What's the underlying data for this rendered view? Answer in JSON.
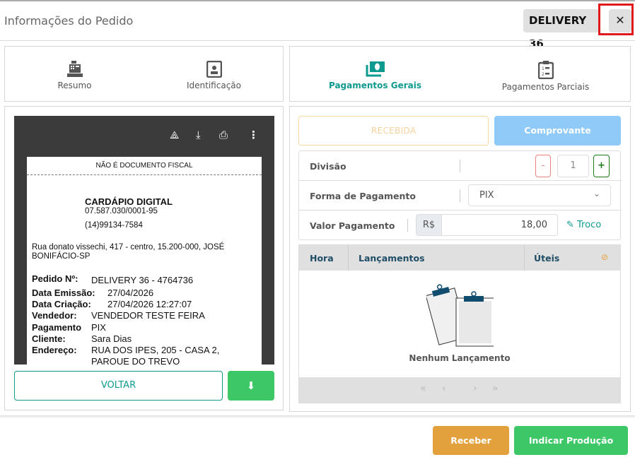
{
  "header": {
    "title": "Informações do Pedido",
    "badge": "DELIVERY 36",
    "close_icon": "close-icon"
  },
  "left_tabs": [
    {
      "label": "Resumo",
      "icon": "cash-register-icon"
    },
    {
      "label": "Identificação",
      "icon": "id-badge-icon"
    }
  ],
  "right_tabs": [
    {
      "label": "Pagamentos Gerais",
      "icon": "money-bill-icon",
      "active": true
    },
    {
      "label": "Pagamentos Parciais",
      "icon": "clipboard-list-icon"
    }
  ],
  "pdf_viewer": {
    "toolbar_icons": [
      "drive-add-icon",
      "download-icon",
      "print-icon",
      "more-vert-icon"
    ],
    "receipt": {
      "notice": "NÃO É DOCUMENTO FISCAL",
      "company": "CARDÁPIO DIGITAL",
      "cnpj": "07.587.030/0001-95",
      "phone": "(14)99134-7584",
      "address_line1": "Rua donato vissechi, 417 - centro, 15.200-000, JOSÉ",
      "address_line2": "BONIFÁCIO-SP",
      "fields": [
        {
          "label": "Pedido Nº:",
          "value": "DELIVERY 36 - 4764736"
        },
        {
          "label": "Data Emissão:",
          "value": "27/04/2026"
        },
        {
          "label": "Data Criação:",
          "value": "27/04/2026 12:27:07"
        },
        {
          "label": "Vendedor:",
          "value": "VENDEDOR TESTE FEIRA"
        },
        {
          "label": "Pagamento",
          "value": "PIX"
        },
        {
          "label": "Cliente:",
          "value": "Sara Dias"
        },
        {
          "label": "Endereço:",
          "value": "RUA DOS IPES, 205 - CASA 2,"
        },
        {
          "label": "",
          "value": "PARQUE DO TREVO"
        }
      ]
    }
  },
  "left_actions": {
    "back": "VOLTAR",
    "download_icon": "download-icon"
  },
  "payment": {
    "recebida": "RECEBIDA",
    "comprovante": "Comprovante",
    "divisao_label": "Divisão",
    "minus": "-",
    "divisao_value": "1",
    "plus": "+",
    "forma_label": "Forma de Pagamento",
    "forma_value": "PIX",
    "valor_label": "Valor Pagamento",
    "currency": "R$",
    "valor_value": "18,00",
    "troco": "Troco"
  },
  "table": {
    "columns": [
      "Hora",
      "Lançamentos",
      "Úteis"
    ],
    "empty": "Nenhum Lançamento",
    "pager": [
      "«",
      "‹",
      "›",
      "»"
    ]
  },
  "footer": {
    "receber": "Receber",
    "indicar": "Indicar Produção"
  },
  "colors": {
    "accent": "#0f9a8f",
    "receber": "#e3a13d",
    "indicar": "#3ec766",
    "comprovante": "#90caf9",
    "recebida_border": "#f5d9a0"
  }
}
